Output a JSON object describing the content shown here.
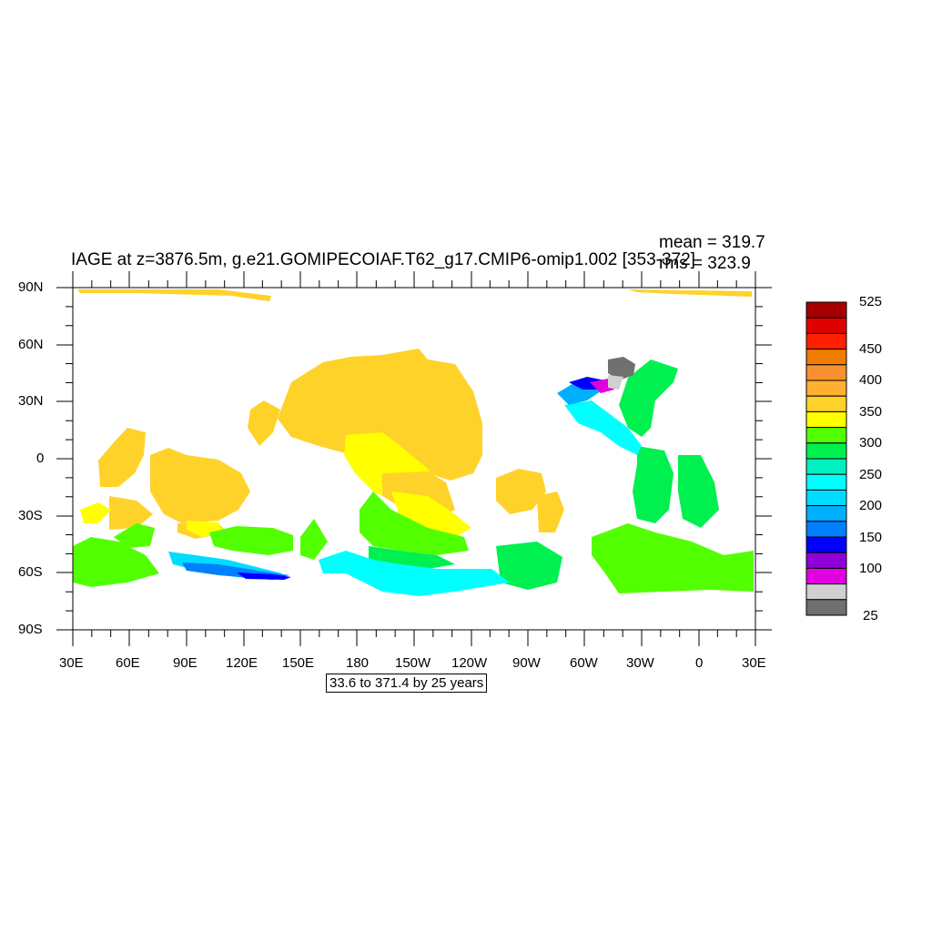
{
  "title": "IAGE at z=3876.5m, g.e21.GOMIPECOIAF.T62_g17.CMIP6-omip1.002 [353-372]",
  "stats": {
    "mean": "mean = 319.7",
    "rms": "rms = 323.9"
  },
  "contour_info": "33.6 to 371.4 by 25 years",
  "lat_labels": [
    "90N",
    "60N",
    "30N",
    "0",
    "30S",
    "60S",
    "90S"
  ],
  "lon_labels": [
    "30E",
    "60E",
    "90E",
    "120E",
    "150E",
    "180",
    "150W",
    "120W",
    "90W",
    "60W",
    "30W",
    "0",
    "30E"
  ],
  "colorbar": {
    "labels": [
      "525",
      "450",
      "400",
      "350",
      "300",
      "250",
      "200",
      "150",
      "100",
      "25"
    ],
    "colors": [
      "#a50000",
      "#e00000",
      "#ff2000",
      "#f07c00",
      "#f89030",
      "#ffb030",
      "#ffd22a",
      "#ffff00",
      "#52ff00",
      "#00f050",
      "#00f0c0",
      "#00ffff",
      "#00dcff",
      "#00b0ff",
      "#0080ff",
      "#0000ff",
      "#9000d8",
      "#e000e0",
      "#d0d0d0",
      "#707070"
    ]
  },
  "map": {
    "projection": "cylindrical-equidistant",
    "central_longitude": "210",
    "variable": "IAGE",
    "units": "years",
    "depth": "3876.5m",
    "mean": 319.7,
    "rms": 323.9,
    "contour_min": 33.6,
    "contour_max": 371.4,
    "contour_interval": 25
  }
}
